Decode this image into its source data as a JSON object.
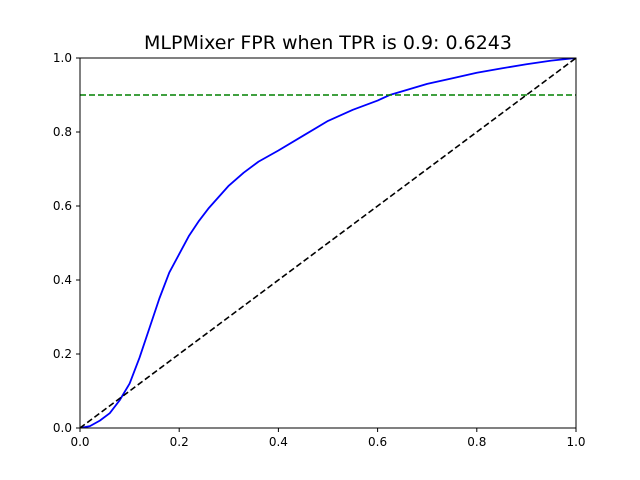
{
  "chart_data": {
    "type": "line",
    "title": "MLPMixer FPR when TPR is 0.9: 0.6243",
    "xlabel": "",
    "ylabel": "",
    "xlim": [
      0.0,
      1.0
    ],
    "ylim": [
      0.0,
      1.0
    ],
    "x_ticks": [
      "0.0",
      "0.2",
      "0.4",
      "0.6",
      "0.8",
      "1.0"
    ],
    "y_ticks": [
      "0.0",
      "0.2",
      "0.4",
      "0.6",
      "0.8",
      "1.0"
    ],
    "grid": false,
    "legend": false,
    "series": [
      {
        "color": "#0000ff",
        "style": "solid",
        "x": [
          0.0,
          0.02,
          0.04,
          0.06,
          0.08,
          0.1,
          0.12,
          0.14,
          0.16,
          0.18,
          0.2,
          0.22,
          0.24,
          0.26,
          0.28,
          0.3,
          0.33,
          0.36,
          0.4,
          0.45,
          0.5,
          0.55,
          0.6,
          0.6243,
          0.65,
          0.7,
          0.75,
          0.8,
          0.85,
          0.9,
          0.95,
          1.0
        ],
        "y": [
          0.0,
          0.005,
          0.02,
          0.04,
          0.075,
          0.12,
          0.19,
          0.27,
          0.35,
          0.42,
          0.47,
          0.52,
          0.56,
          0.595,
          0.625,
          0.655,
          0.69,
          0.72,
          0.75,
          0.79,
          0.83,
          0.86,
          0.885,
          0.9,
          0.91,
          0.93,
          0.945,
          0.96,
          0.972,
          0.983,
          0.993,
          1.0
        ]
      },
      {
        "color": "#000000",
        "style": "dashed",
        "x": [
          0.0,
          1.0
        ],
        "y": [
          0.0,
          1.0
        ]
      },
      {
        "color": "#008000",
        "style": "dashed",
        "x": [
          0.0,
          1.0
        ],
        "y": [
          0.9,
          0.9
        ]
      }
    ]
  }
}
